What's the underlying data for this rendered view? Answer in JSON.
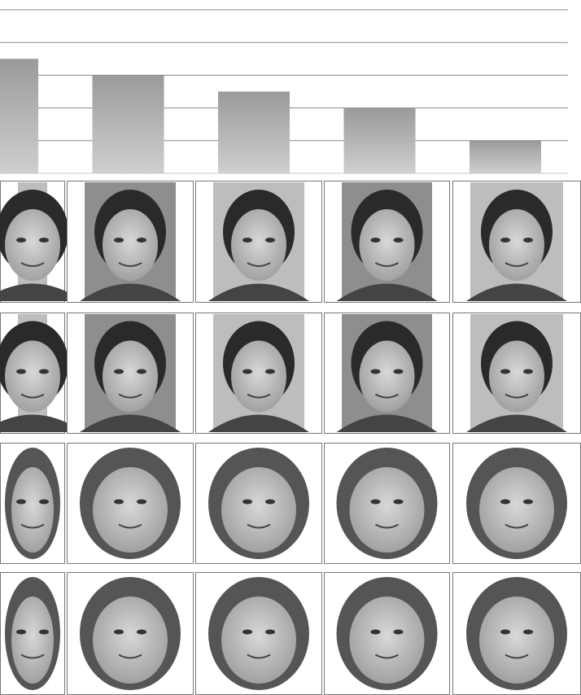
{
  "chart_data": {
    "type": "bar",
    "categories": [
      null,
      null,
      null,
      null,
      null
    ],
    "values": [
      3.5,
      3,
      2.5,
      2,
      1
    ],
    "color": "#a8a8a8",
    "ylim": [
      0,
      5
    ],
    "yticks": [
      0,
      1,
      2,
      3,
      4,
      5
    ],
    "grid": true
  }
}
